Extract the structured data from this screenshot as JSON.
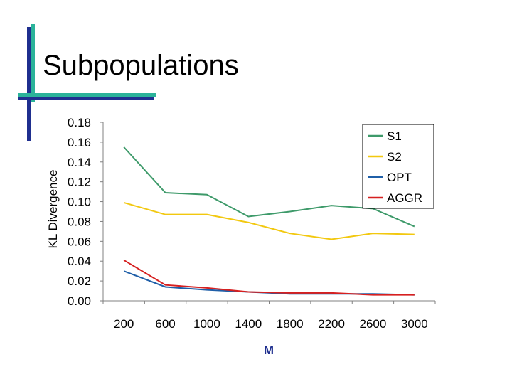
{
  "slide": {
    "title": "Subpopulations",
    "accent_colors": {
      "navy": "#1f2f8f",
      "teal": "#2bb39a"
    }
  },
  "chart_data": {
    "type": "line",
    "title": "",
    "xlabel": "M",
    "ylabel": "KL Divergence",
    "categories": [
      "200",
      "600",
      "1000",
      "1400",
      "1800",
      "2200",
      "2600",
      "3000"
    ],
    "ylim": [
      0,
      0.18
    ],
    "yticks": [
      "0.00",
      "0.02",
      "0.04",
      "0.06",
      "0.08",
      "0.10",
      "0.12",
      "0.14",
      "0.16",
      "0.18"
    ],
    "grid": false,
    "legend_position": "top-right",
    "series": [
      {
        "name": "S1",
        "color": "#3e9a6a",
        "values": [
          0.155,
          0.109,
          0.107,
          0.085,
          0.09,
          0.096,
          0.093,
          0.075
        ]
      },
      {
        "name": "S2",
        "color": "#f2c80f",
        "values": [
          0.099,
          0.087,
          0.087,
          0.079,
          0.068,
          0.062,
          0.068,
          0.067
        ]
      },
      {
        "name": "OPT",
        "color": "#1f5fa8",
        "values": [
          0.03,
          0.014,
          0.011,
          0.009,
          0.007,
          0.007,
          0.007,
          0.006
        ]
      },
      {
        "name": "AGGR",
        "color": "#d62020",
        "values": [
          0.041,
          0.016,
          0.013,
          0.009,
          0.008,
          0.008,
          0.006,
          0.006
        ]
      }
    ]
  }
}
